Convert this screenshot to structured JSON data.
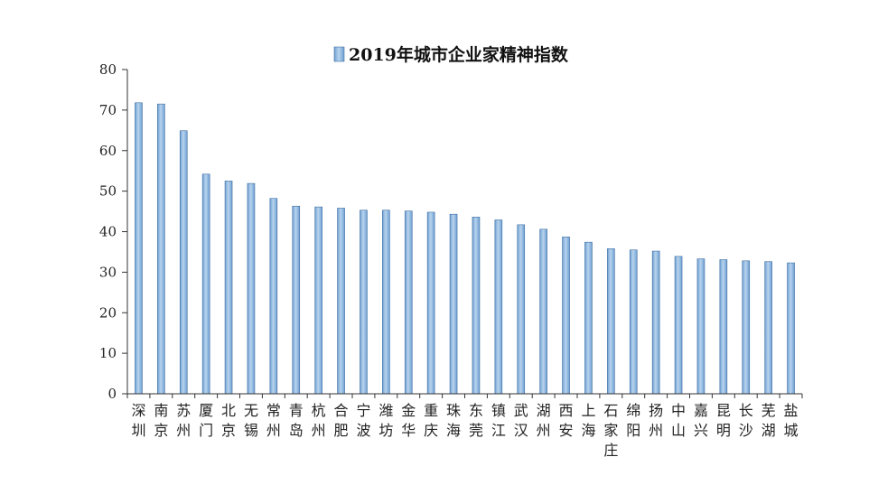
{
  "chart_data": {
    "type": "bar",
    "title": "",
    "xlabel": "",
    "ylabel": "",
    "ylim": [
      0,
      80
    ],
    "yticks": [
      0,
      10,
      20,
      30,
      40,
      50,
      60,
      70,
      80
    ],
    "grid": false,
    "legend": {
      "placement": "top-center",
      "entries": [
        "2019年城市企业家精神指数"
      ]
    },
    "colors": {
      "bar_fill": "#6f9fd2",
      "bar_highlight": "#b8d4ee",
      "bar_edge": "#3f6fa3",
      "axis": "#333333"
    },
    "categories": [
      "深圳",
      "南京",
      "苏州",
      "厦门",
      "北京",
      "无锡",
      "常州",
      "青岛",
      "杭州",
      "合肥",
      "宁波",
      "潍坊",
      "金华",
      "重庆",
      "珠海",
      "东莞",
      "镇江",
      "武汉",
      "湖州",
      "西安",
      "上海",
      "石家庄",
      "绵阳",
      "扬州",
      "中山",
      "嘉兴",
      "昆明",
      "长沙",
      "芜湖",
      "盐城"
    ],
    "series": [
      {
        "name": "2019年城市企业家精神指数",
        "values": [
          71.8,
          71.5,
          64.9,
          54.2,
          52.5,
          51.9,
          48.2,
          46.3,
          46.1,
          45.8,
          45.3,
          45.3,
          45.1,
          44.8,
          44.3,
          43.6,
          42.9,
          41.7,
          40.6,
          38.7,
          37.4,
          35.8,
          35.5,
          35.2,
          33.9,
          33.3,
          33.1,
          32.8,
          32.6,
          32.3
        ]
      }
    ]
  }
}
